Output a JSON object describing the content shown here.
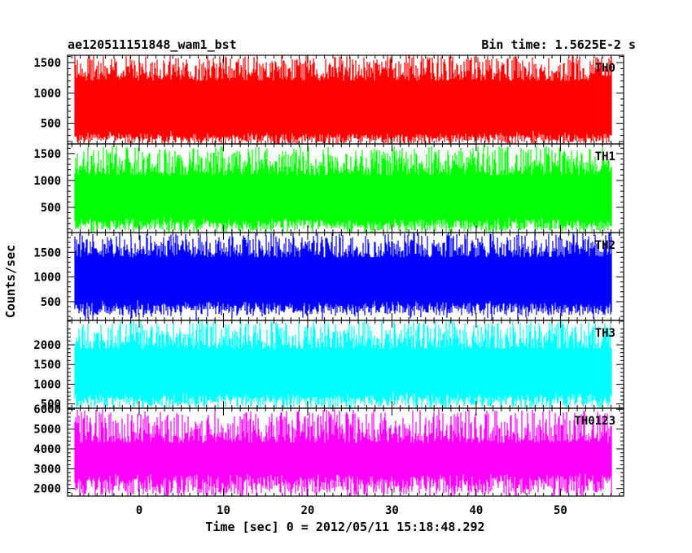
{
  "header": {
    "title": "ae120511151848_wam1_bst",
    "bin_time": "Bin time: 1.5625E-2 s"
  },
  "chart_data": {
    "type": "line",
    "xlabel": "Time [sec] 0 = 2012/05/11 15:18:48.292",
    "ylabel": "Counts/sec",
    "xlim": [
      -8.5,
      57.5
    ],
    "x_ticks": [
      0,
      10,
      20,
      30,
      40,
      50
    ],
    "x_tick_labels": [
      "0",
      "10",
      "20",
      "30",
      "40",
      "50"
    ],
    "data_x_range": [
      -7.6,
      56.0
    ],
    "bin_time_s": 0.015625,
    "panels": [
      {
        "name": "TH0",
        "color": "#ff0000",
        "ylim": [
          160,
          1620
        ],
        "y_ticks": [
          500,
          1000,
          1500
        ],
        "y_tick_labels": [
          "500",
          "1000",
          "1500"
        ],
        "envelope_min": [
          150,
          300
        ],
        "envelope_max": [
          1200,
          1620
        ],
        "mean": 780
      },
      {
        "name": "TH1",
        "color": "#00ff00",
        "ylim": [
          30,
          1680
        ],
        "y_ticks": [
          500,
          1000,
          1500
        ],
        "y_tick_labels": [
          "500",
          "1000",
          "1500"
        ],
        "envelope_min": [
          30,
          250
        ],
        "envelope_max": [
          1100,
          1650
        ],
        "mean": 720
      },
      {
        "name": "TH2",
        "color": "#0000ff",
        "ylim": [
          120,
          1900
        ],
        "y_ticks": [
          500,
          1000,
          1500
        ],
        "y_tick_labels": [
          "500",
          "1000",
          "1500"
        ],
        "envelope_min": [
          200,
          450
        ],
        "envelope_max": [
          1400,
          1900
        ],
        "mean": 950
      },
      {
        "name": "TH3",
        "color": "#00ffff",
        "ylim": [
          390,
          2620
        ],
        "y_ticks": [
          500,
          1000,
          1500,
          2000
        ],
        "y_tick_labels": [
          "500",
          "1000",
          "1500",
          "2000"
        ],
        "envelope_min": [
          390,
          700
        ],
        "envelope_max": [
          1900,
          2620
        ],
        "mean": 1350
      },
      {
        "name": "TH0123",
        "color": "#ff00ff",
        "ylim": [
          1620,
          6050
        ],
        "y_ticks": [
          2000,
          3000,
          4000,
          5000,
          6000
        ],
        "y_tick_labels": [
          "2000",
          "3000",
          "4000",
          "5000",
          "6000"
        ],
        "envelope_min": [
          1620,
          2600
        ],
        "envelope_max": [
          4300,
          6000
        ],
        "mean": 3550
      }
    ]
  }
}
